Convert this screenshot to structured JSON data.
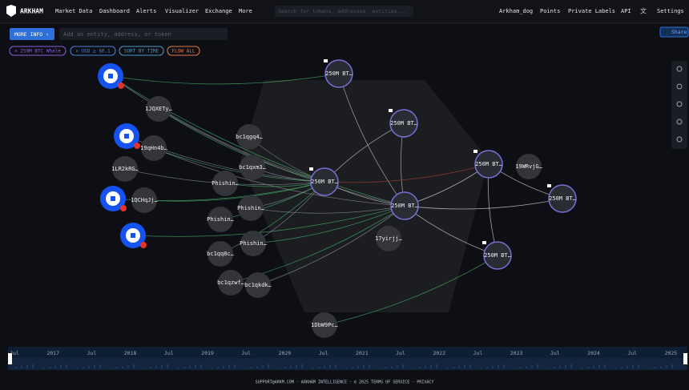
{
  "nav": {
    "logo": "ARKHAM",
    "items": [
      "Market Data",
      "Dashboard",
      "Alerts",
      "Visualizer",
      "Exchange",
      "More"
    ],
    "search": "Search for tokens, addresses, entities...",
    "right": [
      "Arkham_dog",
      "Points",
      "Private Labels",
      "API",
      "Settings"
    ]
  },
  "toolbar": {
    "more_info": "MORE INFO ›",
    "input": "Add an entity, address, or token",
    "share": "Share"
  },
  "filters": [
    "× 250M BTC Whale",
    "× USD ≥ $0.1",
    "SORT BY TIME",
    "FLOW ALL"
  ],
  "nodes": [
    "250M BT…",
    "1JQXETy…",
    "250M BT…",
    "bc1qgq4…",
    "19qHn4b…",
    "1LR2kRG…",
    "bc1qxm3…",
    "250M BT…",
    "250M BT…",
    "19WRvjG…",
    "250M BT…",
    "1QCHqJj…",
    "Phishin…",
    "Phishin…",
    "250M BT…",
    "Phishin…",
    "17yirjj…",
    "Phishin…",
    "250M BT…",
    "bc1qq8c…",
    "bc1qzwf…",
    "bc1qkdk…",
    "1DbW9Pc…"
  ],
  "timeline": [
    "Jul",
    "2017",
    "Jul",
    "2018",
    "Jul",
    "2019",
    "Jul",
    "2020",
    "Jul",
    "2021",
    "Jul",
    "2022",
    "Jul",
    "2023",
    "Jul",
    "2024",
    "Jul",
    "2025"
  ],
  "footer": "SUPPORT@ARKM.COM · ARKHAM INTELLIGENCE · © 2025  TERMS OF SERVICE · PRIVACY"
}
